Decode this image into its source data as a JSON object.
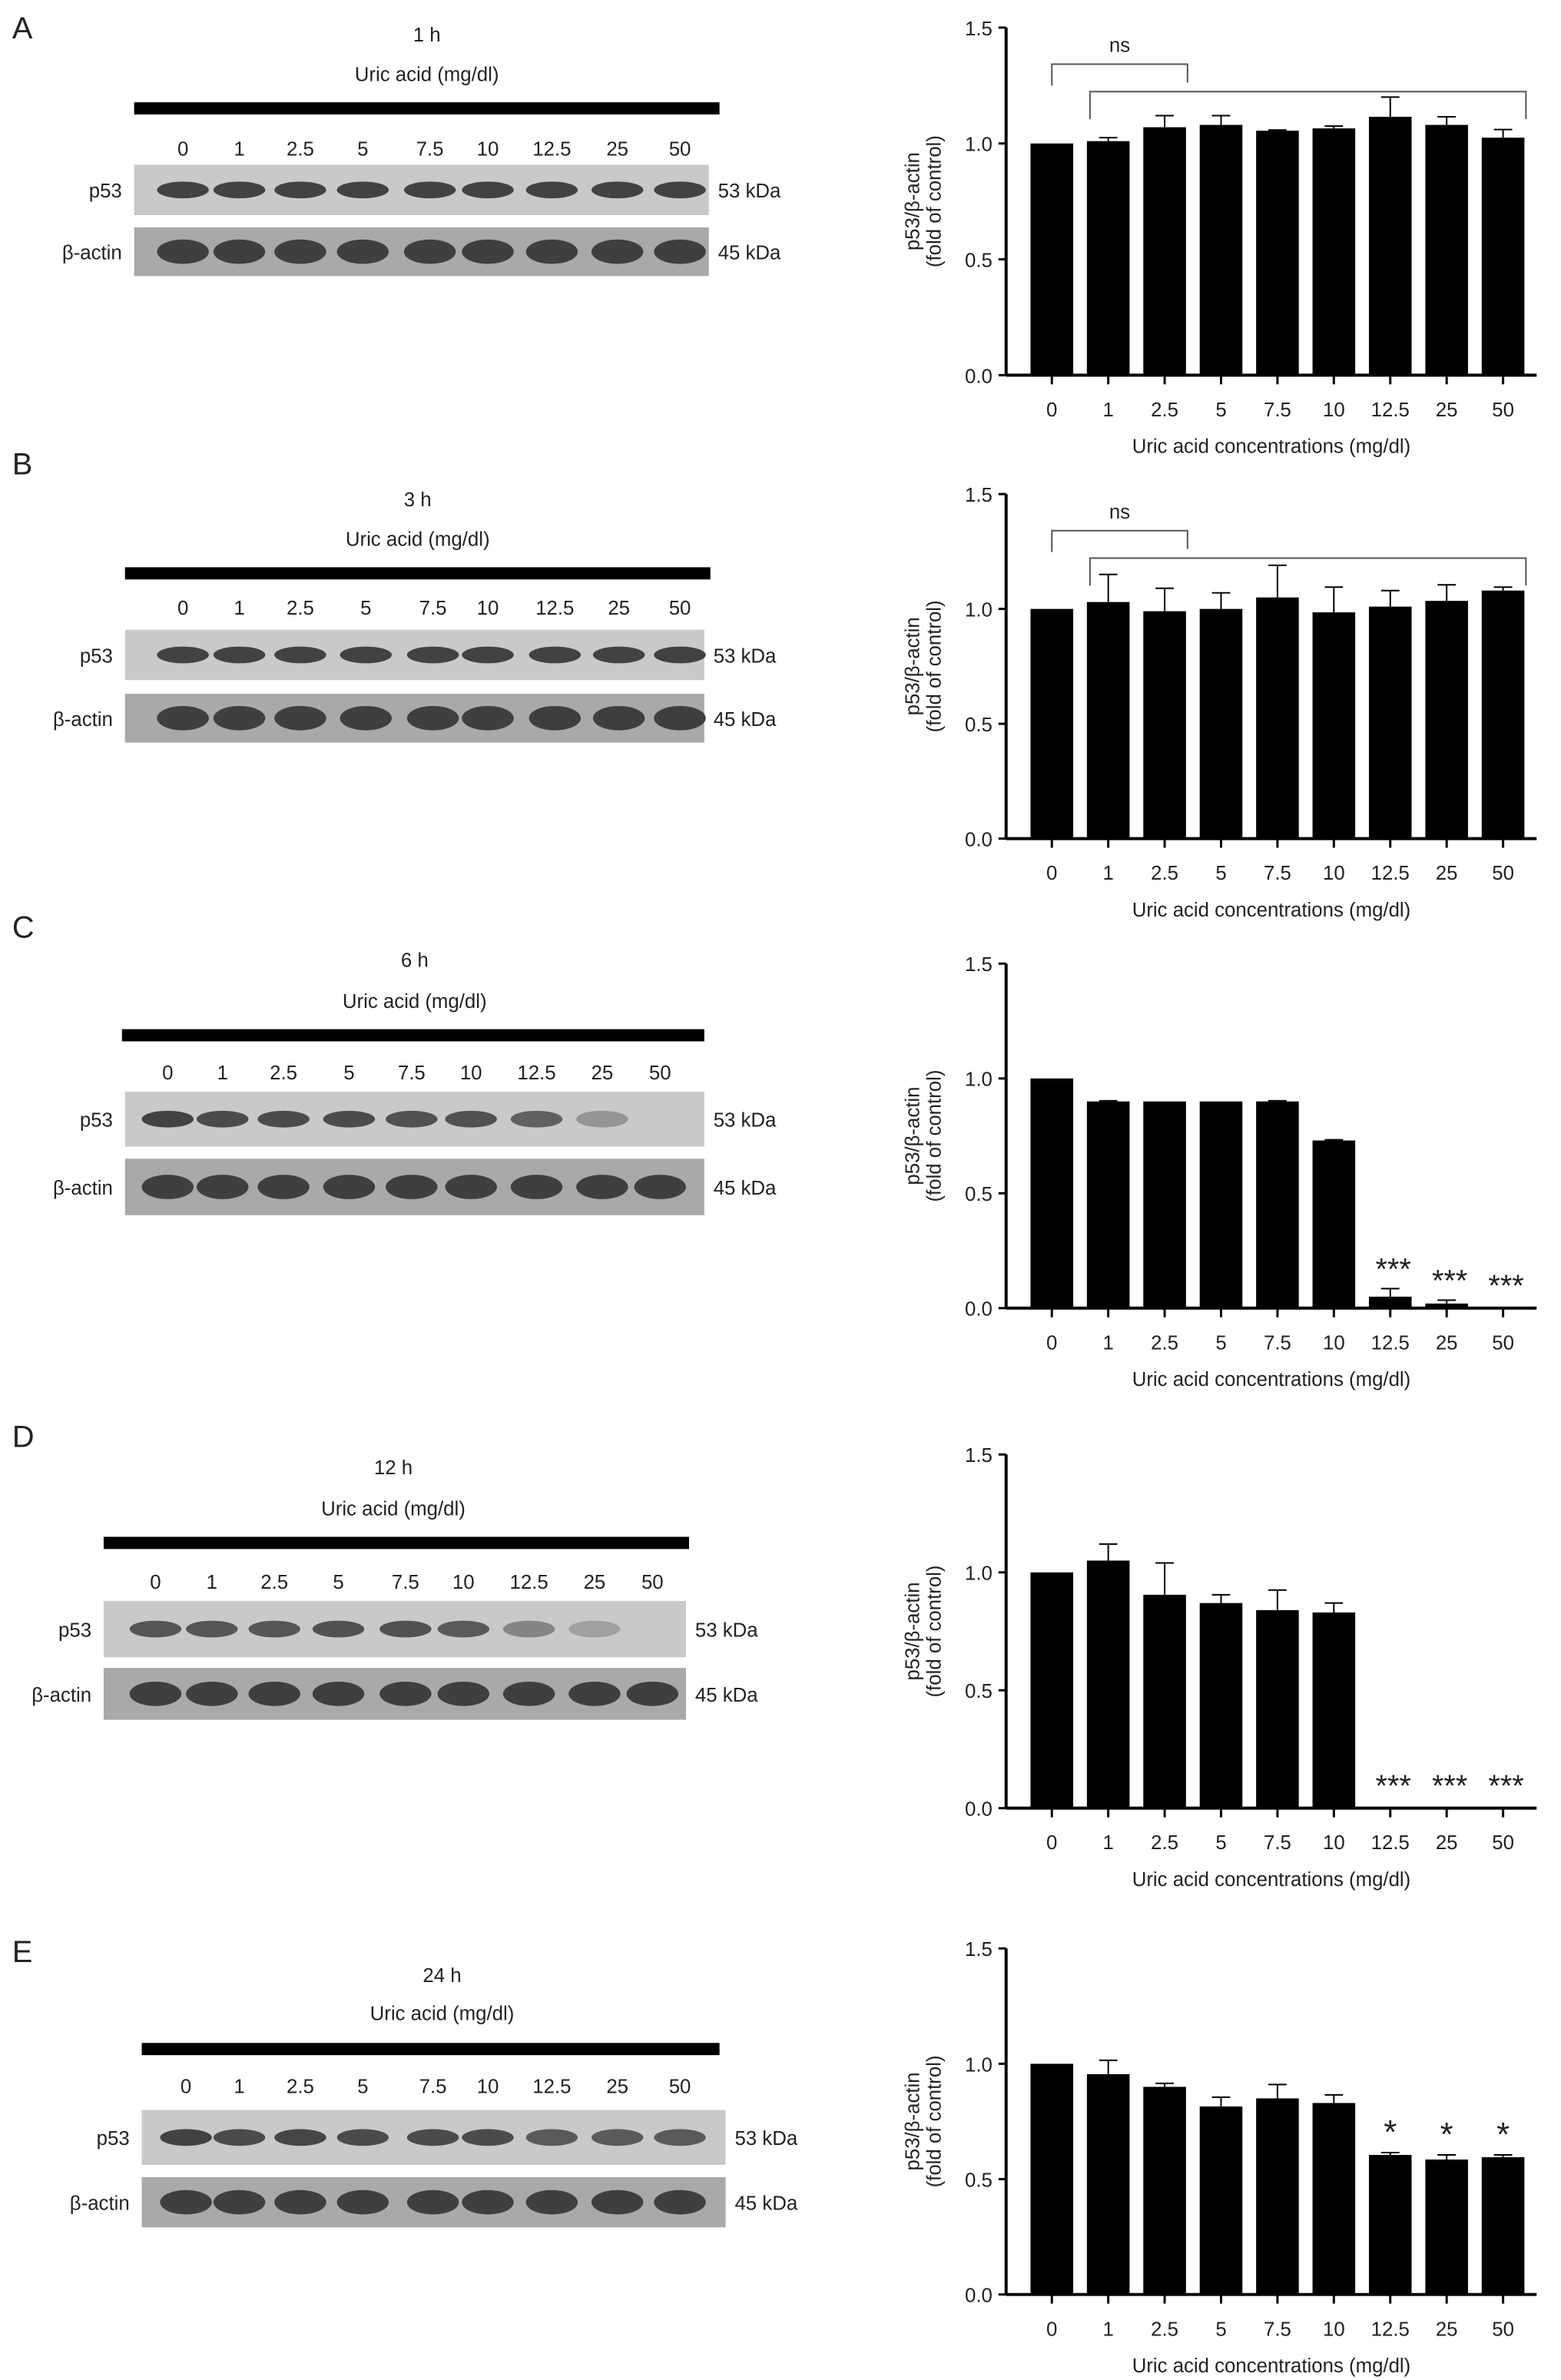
{
  "panels": [
    {
      "letter": "A",
      "time": "1 h",
      "treatment": "Uric acid (mg/dl)",
      "lanes": [
        "0",
        "1",
        "2.5",
        "5",
        "7.5",
        "10",
        "12.5",
        "25",
        "50"
      ],
      "blots": [
        {
          "protein": "p53",
          "size": "53 kDa"
        },
        {
          "protein": "β-actin",
          "size": "45 kDa"
        }
      ]
    },
    {
      "letter": "B",
      "time": "3 h",
      "treatment": "Uric acid (mg/dl)",
      "lanes": [
        "0",
        "1",
        "2.5",
        "5",
        "7.5",
        "10",
        "12.5",
        "25",
        "50"
      ],
      "blots": [
        {
          "protein": "p53",
          "size": "53 kDa"
        },
        {
          "protein": "β-actin",
          "size": "45 kDa"
        }
      ]
    },
    {
      "letter": "C",
      "time": "6 h",
      "treatment": "Uric acid (mg/dl)",
      "lanes": [
        "0",
        "1",
        "2.5",
        "5",
        "7.5",
        "10",
        "12.5",
        "25",
        "50"
      ],
      "blots": [
        {
          "protein": "p53",
          "size": "53 kDa"
        },
        {
          "protein": "β-actin",
          "size": "45 kDa"
        }
      ]
    },
    {
      "letter": "D",
      "time": "12 h",
      "treatment": "Uric acid (mg/dl)",
      "lanes": [
        "0",
        "1",
        "2.5",
        "5",
        "7.5",
        "10",
        "12.5",
        "25",
        "50"
      ],
      "blots": [
        {
          "protein": "p53",
          "size": "53 kDa"
        },
        {
          "protein": "β-actin",
          "size": "45 kDa"
        }
      ]
    },
    {
      "letter": "E",
      "time": "24 h",
      "treatment": "Uric acid (mg/dl)",
      "lanes": [
        "0",
        "1",
        "2.5",
        "5",
        "7.5",
        "10",
        "12.5",
        "25",
        "50"
      ],
      "blots": [
        {
          "protein": "p53",
          "size": "53 kDa"
        },
        {
          "protein": "β-actin",
          "size": "45 kDa"
        }
      ]
    }
  ],
  "chart_data": [
    {
      "type": "bar",
      "panel": "A",
      "categories": [
        "0",
        "1",
        "2.5",
        "5",
        "7.5",
        "10",
        "12.5",
        "25",
        "50"
      ],
      "values": [
        1.0,
        1.01,
        1.07,
        1.08,
        1.055,
        1.065,
        1.115,
        1.08,
        1.025
      ],
      "errors": [
        0,
        0.015,
        0.05,
        0.04,
        0.003,
        0.01,
        0.085,
        0.035,
        0.035
      ],
      "significance": [
        "",
        "",
        "",
        "",
        "",
        "",
        "",
        "",
        ""
      ],
      "brackets": [
        {
          "label": "ns"
        }
      ],
      "xlabel": "Uric acid concentrations (mg/dl)",
      "ylabel": [
        "p53/β-actin",
        "(fold of control)"
      ],
      "ylim": [
        0,
        1.5
      ],
      "yticks": [
        "0.0",
        "0.5",
        "1.0",
        "1.5"
      ],
      "bar_color": "#000000"
    },
    {
      "type": "bar",
      "panel": "B",
      "categories": [
        "0",
        "1",
        "2.5",
        "5",
        "7.5",
        "10",
        "12.5",
        "25",
        "50"
      ],
      "values": [
        1.0,
        1.03,
        0.99,
        1.0,
        1.05,
        0.985,
        1.01,
        1.035,
        1.08
      ],
      "errors": [
        0,
        0.12,
        0.1,
        0.07,
        0.14,
        0.11,
        0.07,
        0.07,
        0.015
      ],
      "significance": [
        "",
        "",
        "",
        "",
        "",
        "",
        "",
        "",
        ""
      ],
      "brackets": [
        {
          "label": "ns"
        }
      ],
      "xlabel": "Uric acid concentrations (mg/dl)",
      "ylabel": [
        "p53/β-actin",
        "(fold of control)"
      ],
      "ylim": [
        0,
        1.5
      ],
      "yticks": [
        "0.0",
        "0.5",
        "1.0",
        "1.5"
      ],
      "bar_color": "#000000"
    },
    {
      "type": "bar",
      "panel": "C",
      "categories": [
        "0",
        "1",
        "2.5",
        "5",
        "7.5",
        "10",
        "12.5",
        "25",
        "50"
      ],
      "values": [
        1.0,
        0.9,
        0.9,
        0.9,
        0.9,
        0.73,
        0.05,
        0.02,
        0.0
      ],
      "errors": [
        0,
        0.003,
        0,
        0,
        0.003,
        0.003,
        0.035,
        0.015,
        0
      ],
      "significance": [
        "",
        "",
        "",
        "",
        "",
        "",
        "***",
        "***",
        "***"
      ],
      "brackets": [],
      "xlabel": "Uric acid concentrations (mg/dl)",
      "ylabel": [
        "p53/β-actin",
        "(fold of control)"
      ],
      "ylim": [
        0,
        1.5
      ],
      "yticks": [
        "0.0",
        "0.5",
        "1.0",
        "1.5"
      ],
      "bar_color": "#000000"
    },
    {
      "type": "bar",
      "panel": "D",
      "categories": [
        "0",
        "1",
        "2.5",
        "5",
        "7.5",
        "10",
        "12.5",
        "25",
        "50"
      ],
      "values": [
        1.0,
        1.05,
        0.905,
        0.87,
        0.84,
        0.83,
        0.005,
        0.0,
        0.0
      ],
      "errors": [
        0,
        0.07,
        0.135,
        0.035,
        0.085,
        0.04,
        0,
        0,
        0
      ],
      "significance": [
        "",
        "",
        "",
        "",
        "",
        "",
        "***",
        "***",
        "***"
      ],
      "brackets": [],
      "xlabel": "Uric acid concentrations (mg/dl)",
      "ylabel": [
        "p53/β-actin",
        "(fold of control)"
      ],
      "ylim": [
        0,
        1.5
      ],
      "yticks": [
        "0.0",
        "0.5",
        "1.0",
        "1.5"
      ],
      "bar_color": "#000000"
    },
    {
      "type": "bar",
      "panel": "E",
      "categories": [
        "0",
        "1",
        "2.5",
        "5",
        "7.5",
        "10",
        "12.5",
        "25",
        "50"
      ],
      "values": [
        1.0,
        0.955,
        0.9,
        0.815,
        0.85,
        0.83,
        0.605,
        0.585,
        0.595
      ],
      "errors": [
        0,
        0.06,
        0.015,
        0.04,
        0.06,
        0.035,
        0.01,
        0.02,
        0.01
      ],
      "significance": [
        "",
        "",
        "",
        "",
        "",
        "",
        "*",
        "*",
        "*"
      ],
      "brackets": [],
      "xlabel": "Uric acid concentrations (mg/dl)",
      "ylabel": [
        "p53/β-actin",
        "(fold of control)"
      ],
      "ylim": [
        0,
        1.5
      ],
      "yticks": [
        "0.0",
        "0.5",
        "1.0",
        "1.5"
      ],
      "bar_color": "#000000"
    }
  ]
}
